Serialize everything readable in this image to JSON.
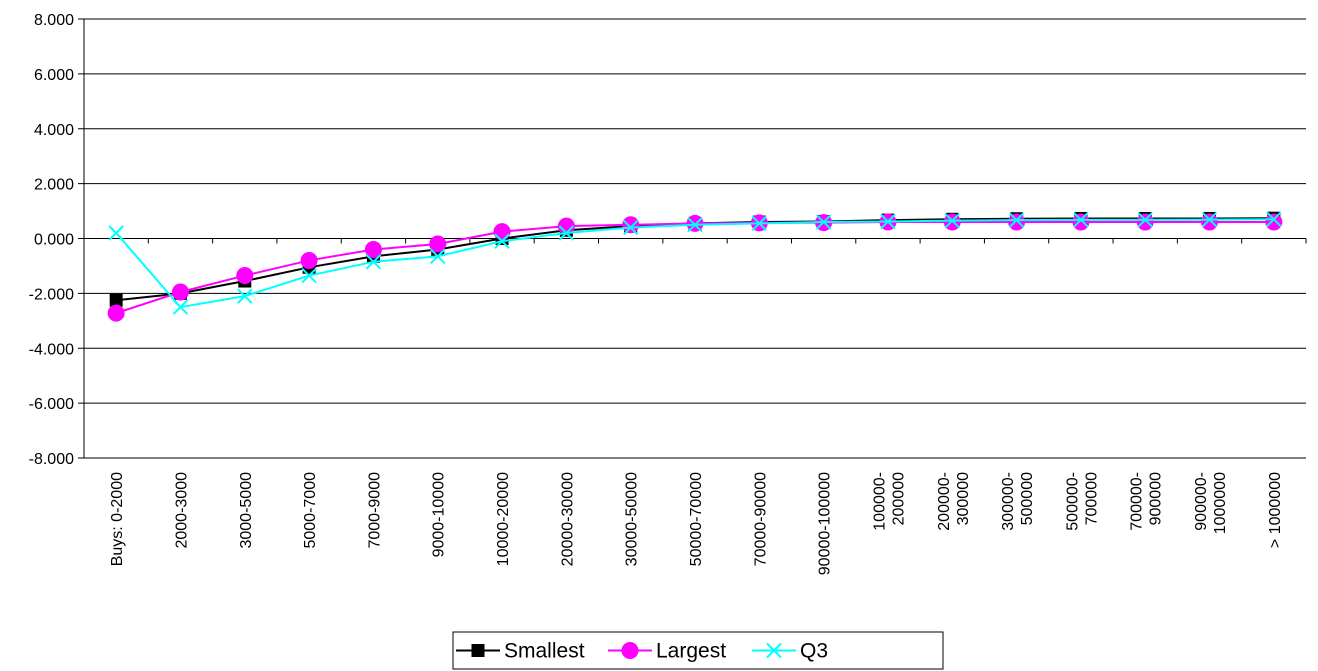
{
  "chart_data": {
    "type": "line",
    "title": "",
    "xlabel": "",
    "ylabel": "",
    "categories": [
      "Buys:  0-2000",
      "2000-3000",
      "3000-5000",
      "5000-7000",
      "7000-9000",
      "9000-10000",
      "10000-20000",
      "20000-30000",
      "30000-50000",
      "50000-70000",
      "70000-90000",
      "90000-100000",
      "100000-\n200000",
      "200000-\n300000",
      "300000-\n500000",
      "500000-\n700000",
      "700000-\n900000",
      "900000-\n1000000",
      "> 1000000"
    ],
    "ylim": [
      -8,
      8
    ],
    "yticks": [
      "8.000",
      "6.000",
      "4.000",
      "2.000",
      "0.000",
      "-2.000",
      "-4.000",
      "-6.000",
      "-8.000"
    ],
    "ytick_values": [
      8,
      6,
      4,
      2,
      0,
      -2,
      -4,
      -6,
      -8
    ],
    "grid": "horizontal",
    "legend_position": "bottom",
    "series": [
      {
        "name": "Smallest",
        "color": "#000000",
        "marker": "square",
        "values": [
          -2.25,
          -2.0,
          -1.55,
          -1.05,
          -0.65,
          -0.4,
          0.0,
          0.3,
          0.45,
          0.55,
          0.6,
          0.62,
          0.67,
          0.7,
          0.72,
          0.73,
          0.73,
          0.73,
          0.74
        ]
      },
      {
        "name": "Largest",
        "color": "#FF00FF",
        "marker": "circle",
        "values": [
          -2.72,
          -1.95,
          -1.35,
          -0.8,
          -0.4,
          -0.2,
          0.25,
          0.45,
          0.5,
          0.55,
          0.57,
          0.58,
          0.6,
          0.6,
          0.6,
          0.6,
          0.6,
          0.6,
          0.6
        ]
      },
      {
        "name": "Q3",
        "color": "#00FFFF",
        "marker": "x",
        "values": [
          0.2,
          -2.5,
          -2.1,
          -1.35,
          -0.85,
          -0.65,
          -0.1,
          0.2,
          0.4,
          0.5,
          0.55,
          0.6,
          0.62,
          0.65,
          0.67,
          0.68,
          0.68,
          0.69,
          0.7
        ]
      }
    ]
  }
}
